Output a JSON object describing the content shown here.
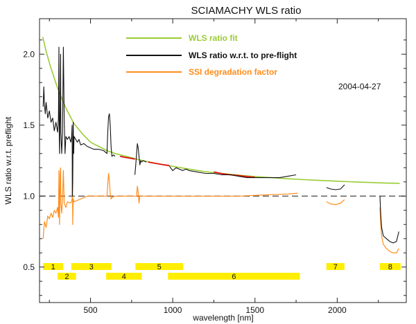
{
  "chart_data": {
    "type": "line",
    "title": "SCIAMACHY WLS ratio",
    "xlabel": "wavelength [nm]",
    "ylabel": "WLS ratio w.r.t. preflight",
    "xlim": [
      190,
      2420
    ],
    "ylim": [
      0.25,
      2.25
    ],
    "x_ticks": [
      500,
      1000,
      1500,
      2000
    ],
    "y_ticks": [
      0.5,
      1.0,
      1.5,
      2.0
    ],
    "x_tick_labels": [
      "500",
      "1000",
      "1500",
      "2000"
    ],
    "y_tick_labels": [
      "0.5",
      "1.0",
      "1.5",
      "2.0"
    ],
    "date": "2004-04-27",
    "reference_line": 1.0,
    "legend": [
      {
        "label": "WLS ratio fit",
        "color": "#99cc33"
      },
      {
        "label": "WLS ratio w.r.t. to pre-flight",
        "color": "#111111"
      },
      {
        "label": "SSI degradation factor",
        "color": "#ff8c1a"
      }
    ],
    "colors": {
      "fit": "#99cc33",
      "ratio": "#111111",
      "ssi": "#ff8c1a",
      "red_segment": "#e01010",
      "band": "#ffee00",
      "reference": "#444444"
    },
    "series": [
      {
        "name": "WLS ratio fit",
        "x": [
          210,
          230,
          260,
          300,
          350,
          400,
          450,
          500,
          550,
          600,
          650,
          700,
          800,
          900,
          1000,
          1100,
          1200,
          1300,
          1400,
          1500,
          1600,
          1700,
          1800,
          1900,
          2000,
          2100,
          2200,
          2300,
          2380
        ],
        "y": [
          2.12,
          2.02,
          1.9,
          1.76,
          1.62,
          1.51,
          1.44,
          1.38,
          1.35,
          1.32,
          1.3,
          1.285,
          1.255,
          1.23,
          1.21,
          1.19,
          1.172,
          1.16,
          1.148,
          1.138,
          1.13,
          1.122,
          1.116,
          1.11,
          1.105,
          1.1,
          1.096,
          1.092,
          1.09
        ]
      },
      {
        "name": "WLS ratio w.r.t. to pre-flight",
        "segments": [
          {
            "x": [
              212,
              216,
              220,
              225,
              230,
              240,
              250,
              260,
              270,
              280,
              290,
              300,
              305,
              308,
              310,
              312,
              315,
              318,
              320,
              325,
              330,
              335,
              340,
              345,
              350,
              360,
              370,
              380,
              385,
              388,
              390,
              392,
              395,
              398,
              400,
              410,
              420,
              430,
              440,
              460,
              480,
              500,
              520,
              550,
              580,
              600,
              605,
              610,
              615,
              620,
              625,
              630,
              640,
              650
            ],
            "y": [
              1.63,
              1.77,
              1.65,
              1.58,
              1.66,
              1.55,
              1.6,
              1.52,
              1.55,
              1.46,
              1.52,
              1.45,
              1.55,
              2.05,
              1.4,
              1.3,
              1.6,
              2.0,
              1.45,
              1.3,
              1.45,
              2.05,
              1.55,
              1.3,
              1.42,
              1.4,
              1.42,
              1.38,
              1.42,
              1.5,
              1.0,
              1.1,
              1.52,
              1.3,
              1.42,
              1.4,
              1.38,
              1.4,
              1.36,
              1.37,
              1.35,
              1.34,
              1.33,
              1.33,
              1.32,
              1.3,
              1.45,
              1.56,
              1.58,
              1.5,
              1.35,
              1.28,
              1.29,
              1.28
            ]
          },
          {
            "x": [
              770,
              775,
              780,
              785,
              790,
              795,
              800,
              805,
              810,
              820,
              840
            ],
            "y": [
              1.15,
              1.22,
              1.3,
              1.37,
              1.34,
              1.28,
              1.22,
              1.25,
              1.24,
              1.25,
              1.24
            ]
          },
          {
            "x": [
              980,
              1000,
              1020,
              1040,
              1060,
              1080,
              1100,
              1150,
              1200,
              1250,
              1300,
              1350,
              1400,
              1450,
              1500,
              1550,
              1600,
              1650,
              1700,
              1750
            ],
            "y": [
              1.21,
              1.18,
              1.2,
              1.19,
              1.18,
              1.19,
              1.18,
              1.17,
              1.16,
              1.16,
              1.15,
              1.15,
              1.14,
              1.13,
              1.13,
              1.13,
              1.13,
              1.13,
              1.14,
              1.15
            ]
          },
          {
            "x": [
              1935,
              1960,
              1990,
              2020,
              2045
            ],
            "y": [
              1.06,
              1.05,
              1.045,
              1.05,
              1.08
            ]
          },
          {
            "x": [
              2260,
              2265,
              2270,
              2280,
              2300,
              2320,
              2340,
              2360,
              2375
            ],
            "y": [
              1.0,
              0.86,
              0.78,
              0.72,
              0.7,
              0.68,
              0.67,
              0.68,
              0.75
            ]
          }
        ]
      },
      {
        "name": "SSI degradation factor",
        "segments": [
          {
            "x": [
              212,
              220,
              230,
              240,
              250,
              260,
              270,
              280,
              290,
              300,
              305,
              308,
              310,
              312,
              315,
              318,
              320,
              325,
              330,
              335,
              340,
              350,
              360,
              380,
              388,
              390,
              392,
              395,
              400,
              420,
              440,
              460,
              480,
              500,
              550,
              600,
              605,
              610,
              615,
              620,
              625,
              630,
              650,
              700,
              750,
              780,
              785,
              790,
              795,
              800,
              810,
              850,
              900,
              950,
              1000,
              1100,
              1200,
              1300,
              1400,
              1500,
              1600,
              1700,
              1760
            ],
            "y": [
              0.7,
              0.82,
              0.78,
              0.86,
              0.84,
              0.88,
              0.85,
              0.9,
              0.88,
              0.92,
              0.85,
              1.18,
              0.92,
              0.8,
              1.15,
              1.2,
              0.95,
              0.88,
              0.98,
              1.18,
              0.95,
              0.92,
              0.96,
              0.95,
              0.98,
              1.2,
              0.8,
              0.98,
              0.96,
              0.97,
              0.98,
              0.99,
              1.0,
              1.0,
              1.0,
              1.0,
              1.08,
              1.16,
              1.1,
              1.02,
              0.98,
              0.99,
              1.0,
              1.0,
              1.0,
              1.0,
              1.07,
              1.03,
              0.95,
              1.0,
              1.0,
              1.0,
              1.0,
              1.0,
              1.0,
              1.0,
              1.0,
              1.0,
              1.0,
              1.005,
              1.01,
              1.015,
              1.02
            ]
          },
          {
            "x": [
              1935,
              1960,
              1990,
              2020,
              2045
            ],
            "y": [
              0.96,
              0.945,
              0.94,
              0.95,
              0.975
            ]
          },
          {
            "x": [
              2260,
              2265,
              2270,
              2280,
              2300,
              2320,
              2340,
              2360,
              2375
            ],
            "y": [
              0.92,
              0.8,
              0.72,
              0.66,
              0.63,
              0.61,
              0.6,
              0.6,
              0.63
            ]
          }
        ]
      }
    ],
    "red_segments": [
      {
        "x": [
          680,
          700,
          750,
          770
        ],
        "y": [
          1.28,
          1.275,
          1.265,
          1.26
        ]
      },
      {
        "x": [
          850,
          900,
          950,
          980
        ],
        "y": [
          1.24,
          1.23,
          1.22,
          1.215
        ]
      },
      {
        "x": [
          1250,
          1300,
          1350,
          1400,
          1450,
          1500
        ],
        "y": [
          1.17,
          1.158,
          1.15,
          1.145,
          1.138,
          1.132
        ]
      }
    ],
    "bands": [
      {
        "label": "1",
        "start": 212,
        "end": 334,
        "row": 1
      },
      {
        "label": "2",
        "start": 300,
        "end": 412,
        "row": 2
      },
      {
        "label": "3",
        "start": 383,
        "end": 628,
        "row": 1
      },
      {
        "label": "4",
        "start": 595,
        "end": 812,
        "row": 2
      },
      {
        "label": "5",
        "start": 773,
        "end": 1063,
        "row": 1
      },
      {
        "label": "6",
        "start": 971,
        "end": 1773,
        "row": 2
      },
      {
        "label": "7",
        "start": 1934,
        "end": 2044,
        "row": 1
      },
      {
        "label": "8",
        "start": 2259,
        "end": 2386,
        "row": 1
      }
    ]
  }
}
